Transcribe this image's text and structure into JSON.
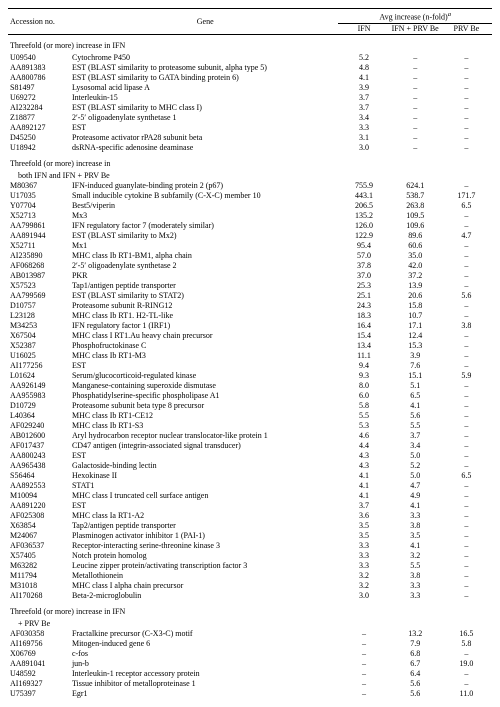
{
  "header": {
    "col1": "Accession no.",
    "col2": "Gene",
    "group": "Avg increase (n-fold)",
    "group_sup": "a",
    "sub1": "IFN",
    "sub2": "IFN + PRV Be",
    "sub3": "PRV Be"
  },
  "sections": [
    {
      "title": "Threefold (or more) increase in IFN",
      "rows": [
        {
          "a": "U09540",
          "g": "Cytochrome P450",
          "v": [
            "5.2",
            "–",
            "–"
          ]
        },
        {
          "a": "AA891383",
          "g": "EST (BLAST similarity to proteasome subunit, alpha type 5)",
          "v": [
            "4.8",
            "–",
            "–"
          ]
        },
        {
          "a": "AA800786",
          "g": "EST (BLAST similarity to GATA binding protein 6)",
          "v": [
            "4.1",
            "–",
            "–"
          ]
        },
        {
          "a": "S81497",
          "g": "Lysosomal acid lipase A",
          "v": [
            "3.9",
            "–",
            "–"
          ]
        },
        {
          "a": "U69272",
          "g": "Interleukin-15",
          "v": [
            "3.7",
            "–",
            "–"
          ]
        },
        {
          "a": "AI232284",
          "g": "EST (BLAST similarity to MHC class I)",
          "v": [
            "3.7",
            "–",
            "–"
          ]
        },
        {
          "a": "Z18877",
          "g": "2′-5′ oligoadenylate synthetase 1",
          "v": [
            "3.4",
            "–",
            "–"
          ]
        },
        {
          "a": "AA892127",
          "g": "EST",
          "v": [
            "3.3",
            "–",
            "–"
          ]
        },
        {
          "a": "D45250",
          "g": "Proteasome activator rPA28 subunit beta",
          "v": [
            "3.1",
            "–",
            "–"
          ]
        },
        {
          "a": "U18942",
          "g": "dsRNA-specific adenosine deaminase",
          "v": [
            "3.0",
            "–",
            "–"
          ]
        }
      ]
    },
    {
      "title": "Threefold (or more) increase in",
      "title2": "both IFN and IFN + PRV Be",
      "rows": [
        {
          "a": "M80367",
          "g": "IFN-induced guanylate-binding protein 2 (p67)",
          "v": [
            "755.9",
            "624.1",
            "–"
          ]
        },
        {
          "a": "U17035",
          "g": "Small inducible cytokine B subfamily (C-X-C) member 10",
          "v": [
            "443.1",
            "538.7",
            "171.7"
          ]
        },
        {
          "a": "Y07704",
          "g": "Best5/viperin",
          "v": [
            "206.5",
            "263.8",
            "6.5"
          ]
        },
        {
          "a": "X52713",
          "g": "Mx3",
          "v": [
            "135.2",
            "109.5",
            "–"
          ]
        },
        {
          "a": "AA799861",
          "g": "IFN regulatory factor 7 (moderately similar)",
          "v": [
            "126.0",
            "109.6",
            "–"
          ]
        },
        {
          "a": "AA891944",
          "g": "EST (BLAST similarity to Mx2)",
          "v": [
            "122.9",
            "89.6",
            "4.7"
          ]
        },
        {
          "a": "X52711",
          "g": "Mx1",
          "v": [
            "95.4",
            "60.6",
            "–"
          ]
        },
        {
          "a": "AI235890",
          "g": "MHC class Ib RT1-BM1, alpha chain",
          "v": [
            "57.0",
            "35.0",
            "–"
          ]
        },
        {
          "a": "AF068268",
          "g": "2′-5′ oligoadenylate synthetase 2",
          "v": [
            "37.8",
            "42.0",
            "–"
          ]
        },
        {
          "a": "AB013987",
          "g": "PKR",
          "v": [
            "37.0",
            "37.2",
            "–"
          ]
        },
        {
          "a": "X57523",
          "g": "Tap1/antigen peptide transporter",
          "v": [
            "25.3",
            "13.9",
            "–"
          ]
        },
        {
          "a": "AA799569",
          "g": "EST (BLAST similarity to STAT2)",
          "v": [
            "25.1",
            "20.6",
            "5.6"
          ]
        },
        {
          "a": "D10757",
          "g": "Proteasome subunit R-RING12",
          "v": [
            "24.3",
            "15.8",
            "–"
          ]
        },
        {
          "a": "L23128",
          "g": "MHC class Ib RT1. H2-TL-like",
          "v": [
            "18.3",
            "10.7",
            "–"
          ]
        },
        {
          "a": "M34253",
          "g": "IFN regulatory factor 1 (IRF1)",
          "v": [
            "16.4",
            "17.1",
            "3.8"
          ]
        },
        {
          "a": "X67504",
          "g": "MHC class I RT1.Au heavy chain precursor",
          "v": [
            "15.4",
            "12.4",
            "–"
          ]
        },
        {
          "a": "X52387",
          "g": "Phosphofructokinase C",
          "v": [
            "13.4",
            "15.3",
            "–"
          ]
        },
        {
          "a": "U16025",
          "g": "MHC class Ib RT1-M3",
          "v": [
            "11.1",
            "3.9",
            "–"
          ]
        },
        {
          "a": "AI177256",
          "g": "EST",
          "v": [
            "9.4",
            "7.6",
            "–"
          ]
        },
        {
          "a": "L01624",
          "g": "Serum/glucocorticoid-regulated kinase",
          "v": [
            "9.3",
            "15.1",
            "5.9"
          ]
        },
        {
          "a": "AA926149",
          "g": "Manganese-containing superoxide dismutase",
          "v": [
            "8.0",
            "5.1",
            "–"
          ]
        },
        {
          "a": "AA955983",
          "g": "Phosphatidylserine-specific phospholipase A1",
          "v": [
            "6.0",
            "6.5",
            "–"
          ]
        },
        {
          "a": "D10729",
          "g": "Proteasome subunit beta type 8 precursor",
          "v": [
            "5.8",
            "4.1",
            "–"
          ]
        },
        {
          "a": "L40364",
          "g": "MHC class Ib RT1-CE12",
          "v": [
            "5.5",
            "5.6",
            "–"
          ]
        },
        {
          "a": "AF029240",
          "g": "MHC class Ib RT1-S3",
          "v": [
            "5.3",
            "5.5",
            "–"
          ]
        },
        {
          "a": "AB012600",
          "g": "Aryl hydrocarbon receptor nuclear translocator-like protein 1",
          "v": [
            "4.6",
            "3.7",
            "–"
          ]
        },
        {
          "a": "AF017437",
          "g": "CD47 antigen (integrin-associated signal transducer)",
          "v": [
            "4.4",
            "3.4",
            "–"
          ]
        },
        {
          "a": "AA800243",
          "g": "EST",
          "v": [
            "4.3",
            "5.0",
            "–"
          ]
        },
        {
          "a": "AA965438",
          "g": "Galactoside-binding lectin",
          "v": [
            "4.3",
            "5.2",
            "–"
          ]
        },
        {
          "a": "S56464",
          "g": "Hexokinase II",
          "v": [
            "4.1",
            "5.0",
            "6.5"
          ]
        },
        {
          "a": "AA892553",
          "g": "STAT1",
          "v": [
            "4.1",
            "4.7",
            "–"
          ]
        },
        {
          "a": "M10094",
          "g": "MHC class I truncated cell surface antigen",
          "v": [
            "4.1",
            "4.9",
            "–"
          ]
        },
        {
          "a": "AA891220",
          "g": "EST",
          "v": [
            "3.7",
            "4.1",
            "–"
          ]
        },
        {
          "a": "AF025308",
          "g": "MHC class Ia RT1-A2",
          "v": [
            "3.6",
            "3.3",
            "–"
          ]
        },
        {
          "a": "X63854",
          "g": "Tap2/antigen peptide transporter",
          "v": [
            "3.5",
            "3.8",
            "–"
          ]
        },
        {
          "a": "M24067",
          "g": "Plasminogen activator inhibitor 1 (PAI-1)",
          "v": [
            "3.5",
            "3.5",
            "–"
          ]
        },
        {
          "a": "AF036537",
          "g": "Receptor-interacting serine-threonine kinase 3",
          "v": [
            "3.3",
            "4.1",
            "–"
          ]
        },
        {
          "a": "X57405",
          "g": "Notch protein homolog",
          "v": [
            "3.3",
            "3.2",
            "–"
          ]
        },
        {
          "a": "M63282",
          "g": "Leucine zipper protein/activating transcription factor 3",
          "v": [
            "3.3",
            "5.5",
            "–"
          ]
        },
        {
          "a": "M11794",
          "g": "Metallothionein",
          "v": [
            "3.2",
            "3.8",
            "–"
          ]
        },
        {
          "a": "M31018",
          "g": "MHC class I alpha chain precursor",
          "v": [
            "3.2",
            "3.3",
            "–"
          ]
        },
        {
          "a": "AI170268",
          "g": "Beta-2-microglobulin",
          "v": [
            "3.0",
            "3.3",
            "–"
          ]
        }
      ]
    },
    {
      "title": "Threefold (or more) increase in IFN",
      "title2": "+ PRV Be",
      "rows": [
        {
          "a": "AF030358",
          "g": "Fractalkine precursor (C-X3-C) motif",
          "v": [
            "–",
            "13.2",
            "16.5"
          ]
        },
        {
          "a": "AI169756",
          "g": "Mitogen-induced gene 6",
          "v": [
            "–",
            "7.9",
            "5.8"
          ]
        },
        {
          "a": "X06769",
          "g": "c-fos",
          "v": [
            "–",
            "6.8",
            "–"
          ]
        },
        {
          "a": "AA891041",
          "g": "jun-b",
          "v": [
            "–",
            "6.7",
            "19.0"
          ]
        },
        {
          "a": "U48592",
          "g": "Interleukin-1 receptor accessory protein",
          "v": [
            "–",
            "6.4",
            "–"
          ]
        },
        {
          "a": "AI169327",
          "g": "Tissue inhibitor of metalloproteinase 1",
          "v": [
            "–",
            "5.6",
            "–"
          ]
        },
        {
          "a": "U75397",
          "g": "Egr1",
          "v": [
            "–",
            "5.6",
            "11.0"
          ]
        }
      ]
    }
  ]
}
